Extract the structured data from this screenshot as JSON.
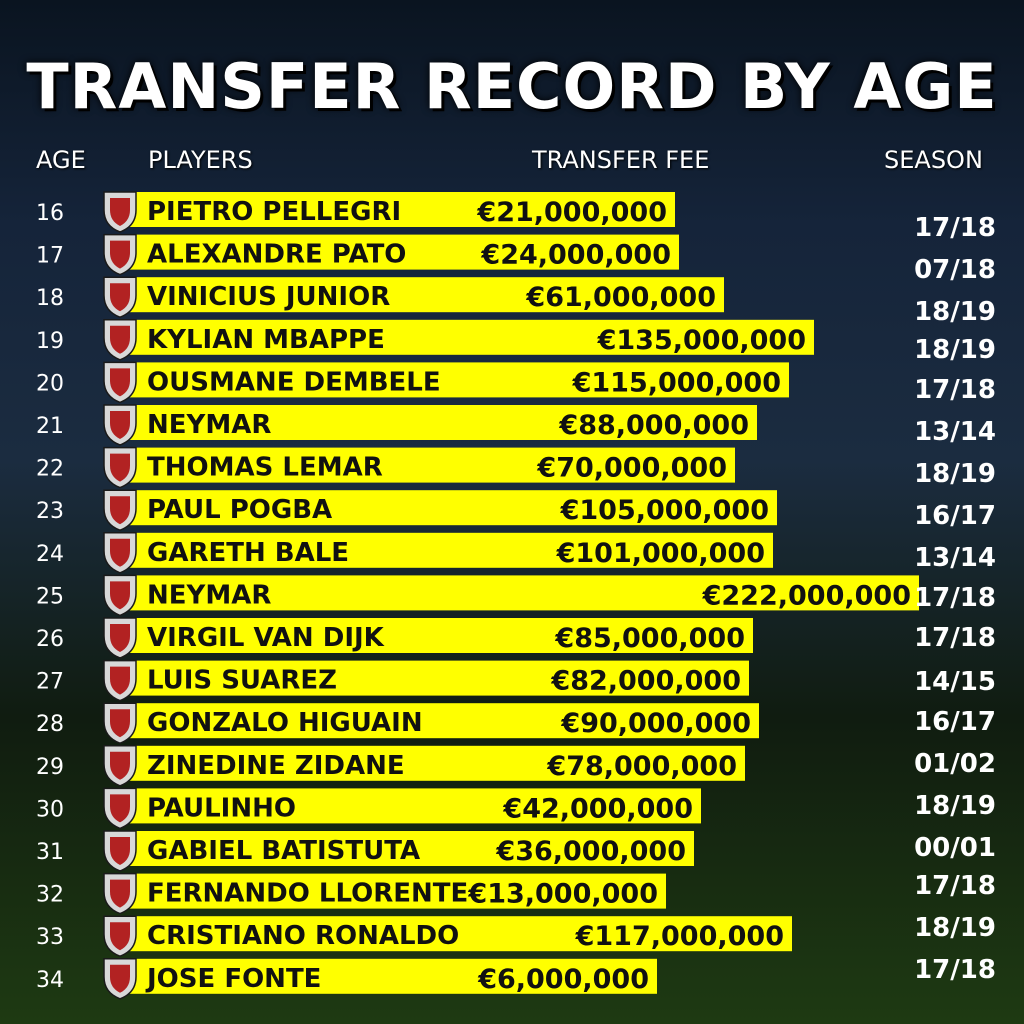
{
  "title": "TRANSFER RECORD BY AGE",
  "headers": {
    "age": "AGE",
    "players": "PLAYERS",
    "fee": "TRANSFER FEE",
    "season": "SEASON"
  },
  "colors": {
    "bar": "#ffff00",
    "bar_text": "#111111",
    "text": "#ffffff"
  },
  "chart_data": {
    "type": "bar",
    "orientation": "horizontal",
    "title": "TRANSFER RECORD BY AGE",
    "rows": [
      {
        "age": "16",
        "player": "PIETRO PELLEGRI",
        "fee_label": "€21,000,000",
        "value": 21000000,
        "season": "17/18",
        "club_icon": "monaco-crest-icon"
      },
      {
        "age": "17",
        "player": "ALEXANDRE PATO",
        "fee_label": "€24,000,000",
        "value": 24000000,
        "season": "07/18",
        "club_icon": "ac-milan-crest-icon"
      },
      {
        "age": "18",
        "player": "VINICIUS JUNIOR",
        "fee_label": "€61,000,000",
        "value": 61000000,
        "season": "18/19",
        "club_icon": "real-madrid-crest-icon"
      },
      {
        "age": "19",
        "player": "KYLIAN MBAPPE",
        "fee_label": "€135,000,000",
        "value": 135000000,
        "season": "18/19",
        "club_icon": "psg-crest-icon"
      },
      {
        "age": "20",
        "player": "OUSMANE DEMBELE",
        "fee_label": "€115,000,000",
        "value": 115000000,
        "season": "17/18",
        "club_icon": "barcelona-crest-icon"
      },
      {
        "age": "21",
        "player": "NEYMAR",
        "fee_label": "€88,000,000",
        "value": 88000000,
        "season": "13/14",
        "club_icon": "barcelona-crest-icon"
      },
      {
        "age": "22",
        "player": "THOMAS LEMAR",
        "fee_label": "€70,000,000",
        "value": 70000000,
        "season": "18/19",
        "club_icon": "atletico-madrid-crest-icon"
      },
      {
        "age": "23",
        "player": "PAUL POGBA",
        "fee_label": "€105,000,000",
        "value": 105000000,
        "season": "16/17",
        "club_icon": "man-united-crest-icon"
      },
      {
        "age": "24",
        "player": "GARETH BALE",
        "fee_label": "€101,000,000",
        "value": 101000000,
        "season": "13/14",
        "club_icon": "real-madrid-crest-icon"
      },
      {
        "age": "25",
        "player": "NEYMAR",
        "fee_label": "€222,000,000",
        "value": 222000000,
        "season": "17/18",
        "club_icon": "psg-crest-icon"
      },
      {
        "age": "26",
        "player": "VIRGIL VAN DIJK",
        "fee_label": "€85,000,000",
        "value": 85000000,
        "season": "17/18",
        "club_icon": "liverpool-crest-icon"
      },
      {
        "age": "27",
        "player": "LUIS SUAREZ",
        "fee_label": "€82,000,000",
        "value": 82000000,
        "season": "14/15",
        "club_icon": "barcelona-crest-icon"
      },
      {
        "age": "28",
        "player": "GONZALO HIGUAIN",
        "fee_label": "€90,000,000",
        "value": 90000000,
        "season": "16/17",
        "club_icon": "juventus-crest-icon"
      },
      {
        "age": "29",
        "player": "ZINEDINE ZIDANE",
        "fee_label": "€78,000,000",
        "value": 78000000,
        "season": "01/02",
        "club_icon": "real-madrid-crest-icon"
      },
      {
        "age": "30",
        "player": "PAULINHO",
        "fee_label": "€42,000,000",
        "value": 42000000,
        "season": "18/19",
        "club_icon": "guangzhou-crest-icon"
      },
      {
        "age": "31",
        "player": "GABIEL BATISTUTA",
        "fee_label": "€36,000,000",
        "value": 36000000,
        "season": "00/01",
        "club_icon": "roma-crest-icon"
      },
      {
        "age": "32",
        "player": "FERNANDO LLORENTE",
        "fee_label": "€13,000,000",
        "value": 13000000,
        "season": "17/18",
        "club_icon": "tottenham-crest-icon"
      },
      {
        "age": "33",
        "player": "CRISTIANO RONALDO",
        "fee_label": "€117,000,000",
        "value": 117000000,
        "season": "18/19",
        "club_icon": "juventus-crest-icon"
      },
      {
        "age": "34",
        "player": "JOSE FONTE",
        "fee_label": "€6,000,000",
        "value": 6000000,
        "season": "17/18",
        "club_icon": "lille-crest-icon"
      }
    ]
  }
}
